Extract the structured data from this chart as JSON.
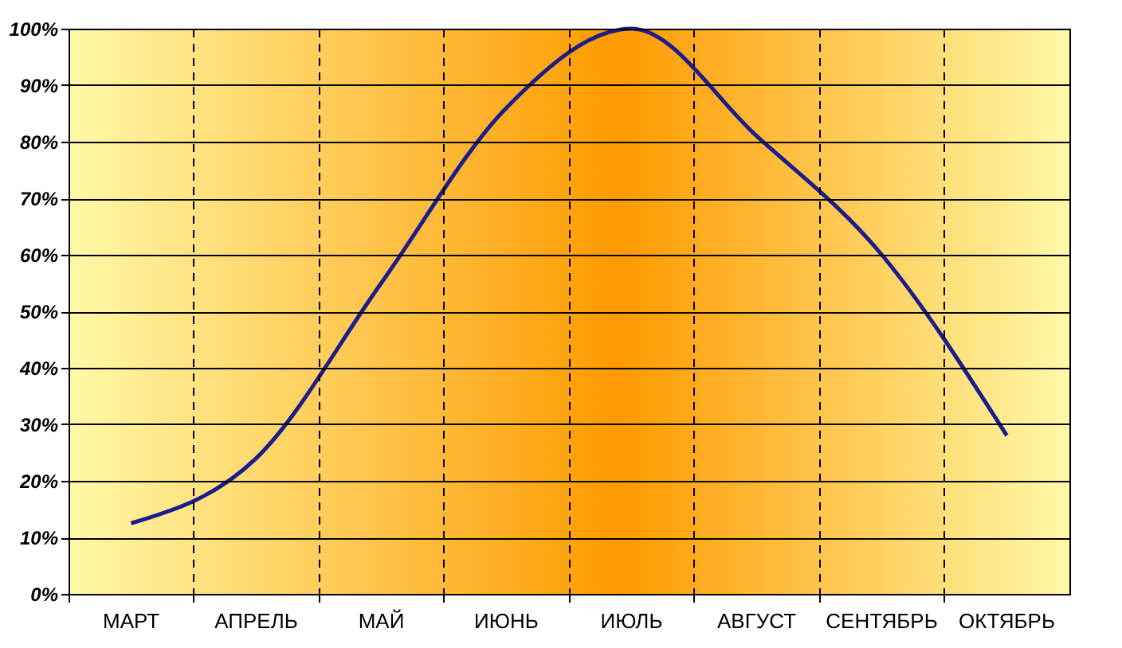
{
  "chart_data": {
    "type": "line",
    "categories": [
      "МАРТ",
      "АПРЕЛЬ",
      "МАЙ",
      "ИЮНЬ",
      "ИЮЛЬ",
      "АВГУСТ",
      "СЕНТЯБРЬ",
      "ОКТЯБРЬ"
    ],
    "series": [
      {
        "color": "#1c1c8c",
        "values": [
          12.5,
          24,
          55,
          86,
          100,
          81,
          60,
          28
        ]
      }
    ],
    "ylim": [
      0,
      100
    ],
    "yticks": [
      {
        "value": 0,
        "label": "0%"
      },
      {
        "value": 10,
        "label": "10%"
      },
      {
        "value": 20,
        "label": "20%"
      },
      {
        "value": 30,
        "label": "30%"
      },
      {
        "value": 40,
        "label": "40%"
      },
      {
        "value": 50,
        "label": "50%"
      },
      {
        "value": 60,
        "label": "60%"
      },
      {
        "value": 70,
        "label": "70%"
      },
      {
        "value": 80,
        "label": "80%"
      },
      {
        "value": 90,
        "label": "90%"
      },
      {
        "value": 100,
        "label": "100%"
      }
    ],
    "grid": true,
    "marker": "none",
    "line_style": "solid"
  }
}
